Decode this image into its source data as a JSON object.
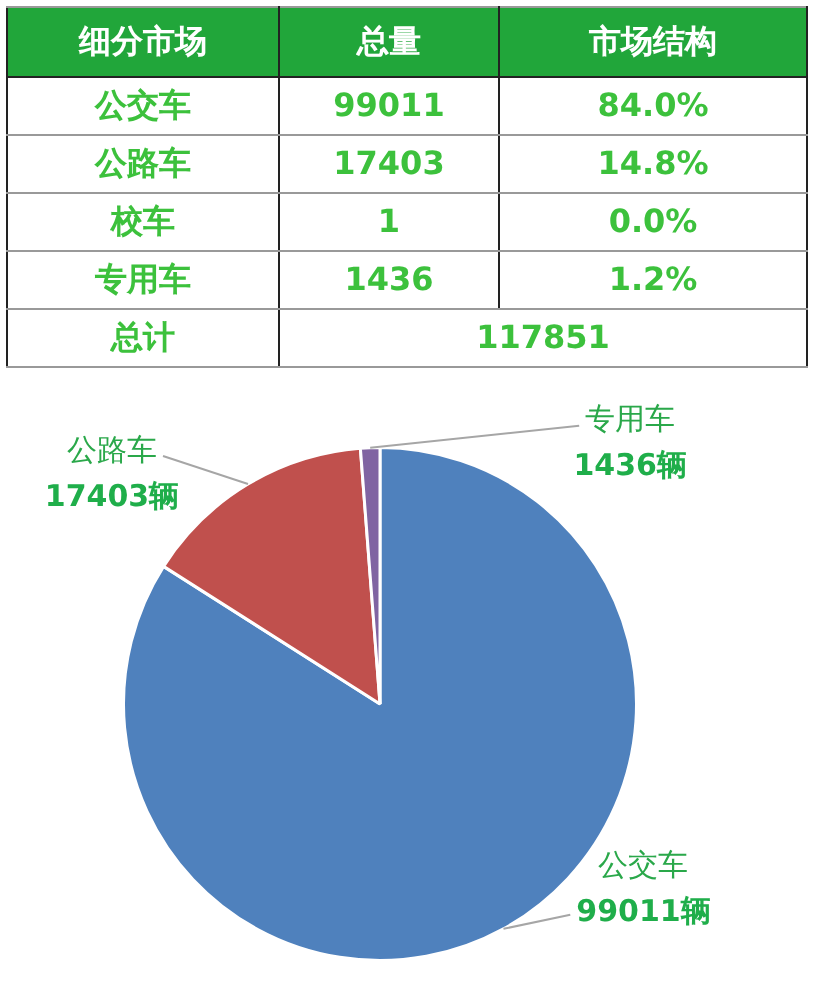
{
  "chart_data": [
    {
      "type": "other",
      "annotations": [
        "细分市场",
        "总量",
        "市场结构",
        "公交车",
        "99011",
        "84.0%",
        "公路车",
        "17403",
        "14.8%",
        "校车",
        "1",
        "0.0%",
        "专用车",
        "1436",
        "1.2%",
        "总计",
        "117851"
      ]
    },
    {
      "type": "pie",
      "categories": [
        "公交车",
        "公路车",
        "专用车"
      ],
      "values": [
        99011,
        17403,
        1436
      ],
      "colors": [
        "#4f81bd",
        "#c0504d",
        "#8064a2"
      ],
      "value_labels": [
        "99011辆",
        "17403辆",
        "1436辆"
      ],
      "legend": false
    }
  ]
}
